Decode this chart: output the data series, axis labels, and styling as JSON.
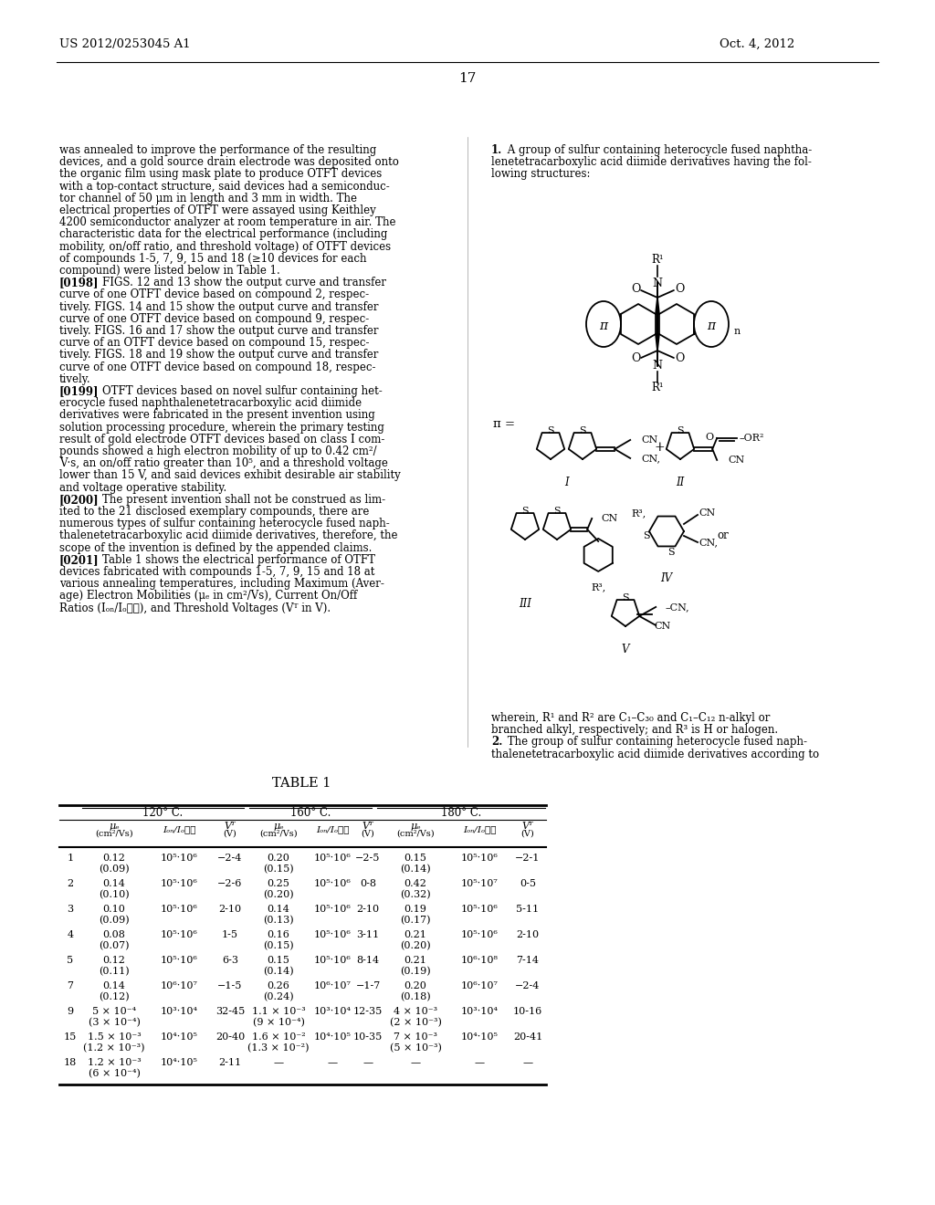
{
  "header_left": "US 2012/0253045 A1",
  "header_right": "Oct. 4, 2012",
  "page_number": "17",
  "fs_body": 8.5,
  "left_paragraphs": [
    [
      "",
      "was annealed to improve the performance of the resulting"
    ],
    [
      "",
      "devices, and a gold source drain electrode was deposited onto"
    ],
    [
      "",
      "the organic film using mask plate to produce OTFT devices"
    ],
    [
      "",
      "with a top-contact structure, said devices had a semiconduc-"
    ],
    [
      "",
      "tor channel of 50 μm in length and 3 mm in width. The"
    ],
    [
      "",
      "electrical properties of OTFT were assayed using Keithley"
    ],
    [
      "",
      "4200 semiconductor analyzer at room temperature in air. The"
    ],
    [
      "",
      "characteristic data for the electrical performance (including"
    ],
    [
      "",
      "mobility, on/off ratio, and threshold voltage) of OTFT devices"
    ],
    [
      "",
      "of compounds 1-5, 7, 9, 15 and 18 (≥10 devices for each"
    ],
    [
      "",
      "compound) were listed below in Table 1."
    ],
    [
      "[0198]",
      "    FIGS. 12 and 13 show the output curve and transfer"
    ],
    [
      "",
      "curve of one OTFT device based on compound 2, respec-"
    ],
    [
      "",
      "tively. FIGS. 14 and 15 show the output curve and transfer"
    ],
    [
      "",
      "curve of one OTFT device based on compound 9, respec-"
    ],
    [
      "",
      "tively. FIGS. 16 and 17 show the output curve and transfer"
    ],
    [
      "",
      "curve of an OTFT device based on compound 15, respec-"
    ],
    [
      "",
      "tively. FIGS. 18 and 19 show the output curve and transfer"
    ],
    [
      "",
      "curve of one OTFT device based on compound 18, respec-"
    ],
    [
      "",
      "tively."
    ],
    [
      "[0199]",
      "    OTFT devices based on novel sulfur containing het-"
    ],
    [
      "",
      "erocycle fused naphthalenetetracarboxylic acid diimide"
    ],
    [
      "",
      "derivatives were fabricated in the present invention using"
    ],
    [
      "",
      "solution processing procedure, wherein the primary testing"
    ],
    [
      "",
      "result of gold electrode OTFT devices based on class I com-"
    ],
    [
      "",
      "pounds showed a high electron mobility of up to 0.42 cm²/"
    ],
    [
      "",
      "V·s, an on/off ratio greater than 10⁵, and a threshold voltage"
    ],
    [
      "",
      "lower than 15 V, and said devices exhibit desirable air stability"
    ],
    [
      "",
      "and voltage operative stability."
    ],
    [
      "[0200]",
      "    The present invention shall not be construed as lim-"
    ],
    [
      "",
      "ited to the 21 disclosed exemplary compounds, there are"
    ],
    [
      "",
      "numerous types of sulfur containing heterocycle fused naph-"
    ],
    [
      "",
      "thalenetetracarboxylic acid diimide derivatives, therefore, the"
    ],
    [
      "",
      "scope of the invention is defined by the appended claims."
    ],
    [
      "[0201]",
      "    Table 1 shows the electrical performance of OTFT"
    ],
    [
      "",
      "devices fabricated with compounds 1-5, 7, 9, 15 and 18 at"
    ],
    [
      "",
      "various annealing temperatures, including Maximum (Aver-"
    ],
    [
      "",
      "age) Electron Mobilities (μₑ in cm²/Vs), Current On/Off"
    ],
    [
      "",
      "Ratios (Iₒₙ/Iₒ⁦⁦), and Threshold Voltages (Vᵀ in V)."
    ]
  ],
  "right_claim_lines": [
    [
      "1.",
      " A group of sulfur containing heterocycle fused naphtha-"
    ],
    [
      "",
      "lenetetracarboxylic acid diimide derivatives having the fol-"
    ],
    [
      "",
      "lowing structures:"
    ]
  ],
  "right_bottom_lines": [
    [
      "",
      "wherein, R¹ and R² are C₁–C₃₀ and C₁–C₁₂ n-alkyl or"
    ],
    [
      "",
      "branched alkyl, respectively; and R³ is H or halogen."
    ],
    [
      "2.",
      " The group of sulfur containing heterocycle fused naph-"
    ],
    [
      "",
      "thalenetetracarboxylic acid diimide derivatives according to"
    ]
  ],
  "table_rows": [
    [
      "1",
      "0.12",
      "(0.09)",
      "10⁵·10⁶",
      "−2-4",
      "0.20",
      "(0.15)",
      "10⁵·10⁶",
      "−2-5",
      "0.15",
      "(0.14)",
      "10⁵·10⁶",
      "−2-1"
    ],
    [
      "2",
      "0.14",
      "(0.10)",
      "10⁵·10⁶",
      "−2-6",
      "0.25",
      "(0.20)",
      "10⁵·10⁶",
      "0-8",
      "0.42",
      "(0.32)",
      "10⁵·10⁷",
      "0-5"
    ],
    [
      "3",
      "0.10",
      "(0.09)",
      "10⁵·10⁶",
      "2-10",
      "0.14",
      "(0.13)",
      "10⁵·10⁶",
      "2-10",
      "0.19",
      "(0.17)",
      "10⁵·10⁶",
      "5-11"
    ],
    [
      "4",
      "0.08",
      "(0.07)",
      "10⁵·10⁶",
      "1-5",
      "0.16",
      "(0.15)",
      "10⁵·10⁶",
      "3-11",
      "0.21",
      "(0.20)",
      "10⁵·10⁶",
      "2-10"
    ],
    [
      "5",
      "0.12",
      "(0.11)",
      "10⁵·10⁶",
      "6-3",
      "0.15",
      "(0.14)",
      "10⁵·10⁶",
      "8-14",
      "0.21",
      "(0.19)",
      "10⁶·10⁸",
      "7-14"
    ],
    [
      "7",
      "0.14",
      "(0.12)",
      "10⁶·10⁷",
      "−1-5",
      "0.26",
      "(0.24)",
      "10⁶·10⁷",
      "−1-7",
      "0.20",
      "(0.18)",
      "10⁶·10⁷",
      "−2-4"
    ],
    [
      "9",
      "5 × 10⁻⁴",
      "(3 × 10⁻⁴)",
      "10³·10⁴",
      "32-45",
      "1.1 × 10⁻³",
      "(9 × 10⁻⁴)",
      "10³·10⁴",
      "12-35",
      "4 × 10⁻³",
      "(2 × 10⁻³)",
      "10³·10⁴",
      "10-16"
    ],
    [
      "15",
      "1.5 × 10⁻³",
      "(1.2 × 10⁻³)",
      "10⁴·10⁵",
      "20-40",
      "1.6 × 10⁻²",
      "(1.3 × 10⁻²)",
      "10⁴·10⁵",
      "10-35",
      "7 × 10⁻³",
      "(5 × 10⁻³)",
      "10⁴·10⁵",
      "20-41"
    ],
    [
      "18",
      "1.2 × 10⁻³",
      "(6 × 10⁻⁴)",
      "10⁴·10⁵",
      "2-11",
      "—",
      "",
      "—",
      "—",
      "—",
      "",
      "—",
      "—"
    ]
  ]
}
